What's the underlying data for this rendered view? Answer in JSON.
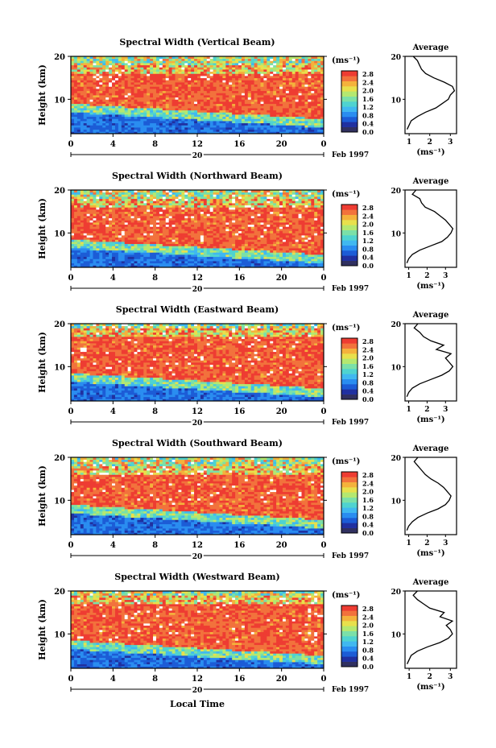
{
  "figure": {
    "x_axis_label": "Local Time",
    "date_label": "Feb 1997",
    "day_label": "20",
    "x_ticks": [
      "0",
      "4",
      "8",
      "12",
      "16",
      "20",
      "0"
    ],
    "y_label": "Height (km)",
    "y_ticks": [
      "20",
      "10"
    ],
    "cbar_unit": "(ms⁻¹)",
    "cbar_ticks": [
      "2.8",
      "2.4",
      "2.0",
      "1.6",
      "1.2",
      "0.8",
      "0.4",
      "0.0"
    ],
    "avg_title": "Average",
    "avg_xlabel": "(ms⁻¹)"
  },
  "colors": {
    "colorbar": [
      "#303060",
      "#2030a0",
      "#1c5cd6",
      "#2a8df0",
      "#40b8f0",
      "#4fd3d0",
      "#7be0a8",
      "#b4e870",
      "#e8e04c",
      "#f4b23c",
      "#f2723c",
      "#ee3c32"
    ]
  },
  "chart_data": [
    {
      "type": "heatmap",
      "title": "Spectral Width (Vertical Beam)",
      "xlabel": "Local Time",
      "ylabel": "Height (km)",
      "xlim": [
        0,
        24
      ],
      "ylim": [
        2,
        20
      ],
      "clim": [
        0.0,
        3.0
      ],
      "description_bands": {
        "low_width_top_km_at_start": 8.5,
        "low_width_top_km_at_end": 5.0,
        "high_width_core_km": [
          9,
          17
        ]
      },
      "average_profile": {
        "xlabel": "(ms⁻¹)",
        "xticks": [
          "1",
          "2",
          "3"
        ],
        "xlim": [
          0.8,
          3.3
        ],
        "height_km": [
          3,
          4,
          5,
          6,
          7,
          8,
          9,
          10,
          11,
          12,
          13,
          14,
          15,
          16,
          17,
          18,
          19,
          20
        ],
        "value": [
          0.9,
          1.0,
          1.1,
          1.4,
          1.8,
          2.3,
          2.6,
          2.9,
          3.0,
          3.2,
          3.1,
          2.7,
          2.2,
          1.8,
          1.6,
          1.5,
          1.4,
          1.2
        ]
      }
    },
    {
      "type": "heatmap",
      "title": "Spectral Width (Northward Beam)",
      "xlabel": "Local Time",
      "ylabel": "Height (km)",
      "xlim": [
        0,
        24
      ],
      "ylim": [
        2,
        20
      ],
      "clim": [
        0.0,
        3.0
      ],
      "description_bands": {
        "low_width_top_km_at_start": 8.0,
        "low_width_top_km_at_end": 4.5,
        "high_width_core_km": [
          8,
          17
        ]
      },
      "average_profile": {
        "xlabel": "(ms⁻¹)",
        "xticks": [
          "1",
          "2",
          "3"
        ],
        "xlim": [
          0.8,
          3.6
        ],
        "height_km": [
          3,
          4,
          5,
          6,
          7,
          8,
          9,
          10,
          11,
          12,
          13,
          14,
          15,
          16,
          17,
          18,
          19,
          20
        ],
        "value": [
          0.9,
          1.0,
          1.2,
          1.6,
          2.2,
          2.8,
          3.1,
          3.3,
          3.4,
          3.2,
          3.0,
          2.7,
          2.4,
          1.9,
          1.7,
          1.6,
          1.2,
          1.4
        ]
      }
    },
    {
      "type": "heatmap",
      "title": "Spectral Width (Eastward Beam)",
      "xlabel": "Local Time",
      "ylabel": "Height (km)",
      "xlim": [
        0,
        24
      ],
      "ylim": [
        2,
        20
      ],
      "clim": [
        0.0,
        3.0
      ],
      "description_bands": {
        "low_width_top_km_at_start": 8.0,
        "low_width_top_km_at_end": 4.5,
        "high_width_core_km": [
          8,
          18
        ]
      },
      "average_profile": {
        "xlabel": "(ms⁻¹)",
        "xticks": [
          "1",
          "2",
          "3"
        ],
        "xlim": [
          0.8,
          3.6
        ],
        "height_km": [
          3,
          4,
          5,
          6,
          7,
          8,
          9,
          10,
          11,
          12,
          13,
          14,
          15,
          16,
          17,
          18,
          19,
          20
        ],
        "value": [
          0.9,
          1.0,
          1.2,
          1.6,
          2.2,
          2.8,
          3.2,
          3.4,
          3.2,
          3.0,
          3.3,
          2.5,
          2.9,
          2.2,
          1.8,
          1.6,
          1.3,
          1.5
        ]
      }
    },
    {
      "type": "heatmap",
      "title": "Spectral Width (Southward Beam)",
      "xlabel": "Local Time",
      "ylabel": "Height (km)",
      "xlim": [
        0,
        24
      ],
      "ylim": [
        2,
        20
      ],
      "clim": [
        0.0,
        3.0
      ],
      "description_bands": {
        "low_width_top_km_at_start": 8.5,
        "low_width_top_km_at_end": 5.0,
        "high_width_core_km": [
          9,
          17
        ]
      },
      "average_profile": {
        "xlabel": "(ms⁻¹)",
        "xticks": [
          "1",
          "2",
          "3"
        ],
        "xlim": [
          0.8,
          3.6
        ],
        "height_km": [
          3,
          4,
          5,
          6,
          7,
          8,
          9,
          10,
          11,
          12,
          13,
          14,
          15,
          16,
          17,
          18,
          19,
          20
        ],
        "value": [
          0.9,
          1.0,
          1.2,
          1.5,
          2.0,
          2.6,
          3.0,
          3.2,
          3.3,
          3.1,
          2.9,
          2.6,
          2.2,
          1.9,
          1.7,
          1.5,
          1.3,
          1.5
        ]
      }
    },
    {
      "type": "heatmap",
      "title": "Spectral Width (Westward Beam)",
      "xlabel": "Local Time",
      "ylabel": "Height (km)",
      "xlim": [
        0,
        24
      ],
      "ylim": [
        2,
        20
      ],
      "clim": [
        0.0,
        3.0
      ],
      "description_bands": {
        "low_width_top_km_at_start": 8.0,
        "low_width_top_km_at_end": 4.5,
        "high_width_core_km": [
          8,
          18
        ]
      },
      "average_profile": {
        "xlabel": "(ms⁻¹)",
        "xticks": [
          "1",
          "2",
          "3"
        ],
        "xlim": [
          0.8,
          3.3
        ],
        "height_km": [
          3,
          4,
          5,
          6,
          7,
          8,
          9,
          10,
          11,
          12,
          13,
          14,
          15,
          16,
          17,
          18,
          19,
          20
        ],
        "value": [
          0.9,
          1.0,
          1.1,
          1.4,
          1.9,
          2.5,
          2.9,
          3.1,
          3.0,
          2.8,
          3.1,
          2.5,
          2.7,
          2.0,
          1.7,
          1.4,
          1.2,
          1.4
        ]
      }
    }
  ]
}
